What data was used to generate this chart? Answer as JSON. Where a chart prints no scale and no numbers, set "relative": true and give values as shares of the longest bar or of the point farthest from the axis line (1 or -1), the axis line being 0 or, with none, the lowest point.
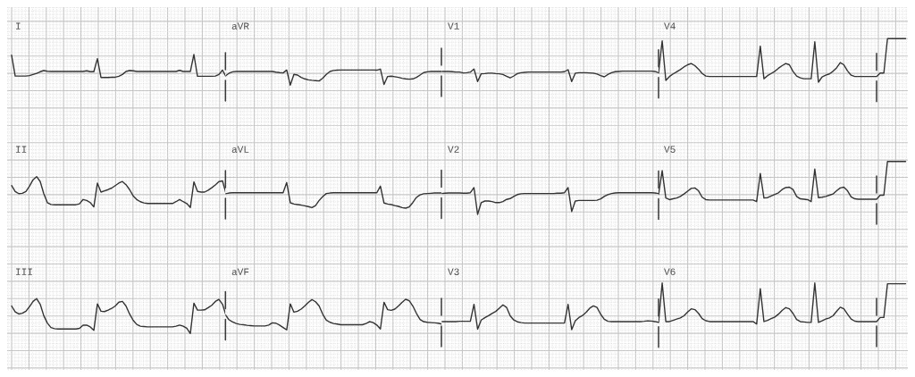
{
  "chart_data": [
    {
      "type": "line",
      "title": "I",
      "relative": true,
      "grid": true,
      "color": "#333333",
      "categories": [
        null,
        null,
        null,
        null,
        null,
        null,
        null,
        null,
        null,
        null,
        null,
        null,
        null,
        null,
        null,
        null,
        null,
        null,
        null,
        null,
        null,
        null,
        null,
        null,
        null,
        null,
        null,
        null,
        null,
        null,
        null,
        null,
        null,
        null,
        null,
        null,
        null,
        null,
        null,
        null,
        null,
        null,
        null,
        null,
        null,
        null,
        null,
        null,
        null,
        null,
        null,
        null,
        null,
        null,
        null,
        null,
        null,
        null,
        null,
        null,
        null
      ],
      "values": [
        0.97,
        0.06,
        0.06,
        0.06,
        0.06,
        0.08,
        0.13,
        0.18,
        0.25,
        0.3,
        0.27,
        0.26,
        0.26,
        0.26,
        0.26,
        0.26,
        0.26,
        0.26,
        0.26,
        0.26,
        0.26,
        0.29,
        0.25,
        0.25,
        0.82,
        0,
        0,
        0,
        0.01,
        0.01,
        0.05,
        0.13,
        0.26,
        0.3,
        0.29,
        0.26,
        0.26,
        0.26,
        0.26,
        0.26,
        0.26,
        0.26,
        0.26,
        0.26,
        0.26,
        0.26,
        0.26,
        0.31,
        0.26,
        0.26,
        0.26,
        1,
        0.05,
        0.05,
        0.05,
        0.05,
        0.05,
        0.06,
        0.13,
        0.32,
        0.03
      ]
    },
    {
      "type": "line",
      "title": "aVR",
      "relative": true,
      "grid": true,
      "color": "#333333",
      "categories": [
        null,
        null,
        null,
        null,
        null,
        null,
        null,
        null,
        null,
        null,
        null,
        null,
        null,
        null,
        null,
        null,
        null,
        null,
        null,
        null,
        null,
        null,
        null,
        null,
        null,
        null,
        null,
        null,
        null,
        null,
        null,
        null,
        null,
        null,
        null,
        null,
        null,
        null,
        null,
        null,
        null,
        null,
        null,
        null,
        null,
        null,
        null,
        null,
        null,
        null,
        null,
        null,
        null,
        null,
        null,
        null,
        null,
        null,
        null,
        null,
        null
      ],
      "values": [
        0.57,
        0.74,
        0.83,
        0.85,
        0.85,
        0.85,
        0.85,
        0.85,
        0.85,
        0.85,
        0.85,
        0.85,
        0.85,
        0.85,
        0.81,
        0.78,
        0.76,
        0.94,
        0,
        0.67,
        0.63,
        0.48,
        0.39,
        0.33,
        0.3,
        0.28,
        0.26,
        0.43,
        0.67,
        0.85,
        0.91,
        0.93,
        0.94,
        0.94,
        0.94,
        0.94,
        0.94,
        0.94,
        0.94,
        0.94,
        0.94,
        0.94,
        0.93,
        1,
        0.04,
        0.54,
        0.56,
        0.52,
        0.48,
        0.43,
        0.39,
        0.37,
        0.39,
        0.48,
        0.63,
        0.78,
        0.83,
        0.85,
        0.85,
        0.85,
        0.85
      ]
    },
    {
      "type": "line",
      "title": "V1",
      "relative": true,
      "grid": true,
      "color": "#333333",
      "categories": [
        null,
        null,
        null,
        null,
        null,
        null,
        null,
        null,
        null,
        null,
        null,
        null,
        null,
        null,
        null,
        null,
        null,
        null,
        null,
        null,
        null,
        null,
        null,
        null,
        null,
        null,
        null,
        null,
        null,
        null,
        null,
        null,
        null,
        null,
        null,
        null,
        null,
        null,
        null,
        null,
        null,
        null,
        null,
        null,
        null,
        null,
        null,
        null,
        null,
        null,
        null,
        null,
        null,
        null,
        null,
        null,
        null,
        null,
        null,
        null,
        null
      ],
      "values": [
        0.81,
        0.81,
        0.81,
        0.79,
        0.76,
        0.76,
        0.69,
        0.71,
        0.76,
        1,
        0,
        0.62,
        0.64,
        0.67,
        0.67,
        0.64,
        0.62,
        0.57,
        0.43,
        0.29,
        0.45,
        0.64,
        0.71,
        0.74,
        0.76,
        0.76,
        0.76,
        0.76,
        0.76,
        0.76,
        0.76,
        0.76,
        0.76,
        0.76,
        0.79,
        0.95,
        0,
        0.67,
        0.71,
        0.71,
        0.71,
        0.69,
        0.67,
        0.6,
        0.48,
        0.38,
        0.57,
        0.71,
        0.79,
        0.81,
        0.83,
        0.83,
        0.83,
        0.83,
        0.83,
        0.83,
        0.83,
        0.83,
        0.83,
        0.81,
        0.71
      ]
    },
    {
      "type": "line",
      "title": "V4",
      "relative": true,
      "grid": true,
      "color": "#333333",
      "categories": [
        null,
        null,
        null,
        null,
        null,
        null,
        null,
        null,
        null,
        null,
        null,
        null,
        null,
        null,
        null,
        null,
        null,
        null,
        null,
        null,
        null,
        null,
        null,
        null,
        null,
        null,
        null,
        null,
        null,
        null,
        null,
        null,
        null,
        null,
        null,
        null,
        null,
        null,
        null,
        null,
        null,
        null,
        null,
        null,
        null,
        null,
        null,
        null,
        null,
        null,
        null,
        null,
        null,
        null,
        null,
        null,
        null,
        null,
        null,
        null,
        null,
        null,
        null,
        null,
        null,
        null,
        null,
        null,
        null
      ],
      "values": [
        0.21,
        0.95,
        0.04,
        0.13,
        0.19,
        0.24,
        0.29,
        0.35,
        0.4,
        0.43,
        0.38,
        0.3,
        0.2,
        0.14,
        0.13,
        0.13,
        0.13,
        0.13,
        0.13,
        0.13,
        0.13,
        0.13,
        0.13,
        0.13,
        0.13,
        0.13,
        0.13,
        0.13,
        0.83,
        0.08,
        0.15,
        0.2,
        0.25,
        0.32,
        0.38,
        0.43,
        0.4,
        0.25,
        0.14,
        0.1,
        0.08,
        0.08,
        0.08,
        0.93,
        0,
        0.12,
        0.16,
        0.19,
        0.25,
        0.33,
        0.45,
        0.4,
        0.26,
        0.16,
        0.13,
        0.13,
        0.13,
        0.13,
        0.13,
        0.13,
        0.13,
        0.21,
        0.21,
        1,
        1,
        1,
        1,
        1,
        1
      ]
    },
    {
      "type": "line",
      "title": "II",
      "relative": true,
      "grid": true,
      "color": "#333333",
      "categories": [
        null,
        null,
        null,
        null,
        null,
        null,
        null,
        null,
        null,
        null,
        null,
        null,
        null,
        null,
        null,
        null,
        null,
        null,
        null,
        null,
        null,
        null,
        null,
        null,
        null,
        null,
        null,
        null,
        null,
        null,
        null,
        null,
        null,
        null,
        null,
        null,
        null,
        null,
        null,
        null,
        null,
        null,
        null,
        null,
        null,
        null,
        null,
        null,
        null,
        null,
        null,
        null,
        null,
        null,
        null,
        null,
        null,
        null,
        null,
        null,
        null
      ],
      "values": [
        0.71,
        0.52,
        0.45,
        0.46,
        0.52,
        0.69,
        0.9,
        1,
        0.84,
        0.45,
        0.16,
        0.1,
        0.09,
        0.09,
        0.09,
        0.09,
        0.09,
        0.09,
        0.09,
        0.12,
        0.26,
        0.23,
        0.16,
        0.02,
        0.79,
        0.5,
        0.54,
        0.58,
        0.63,
        0.71,
        0.79,
        0.84,
        0.74,
        0.58,
        0.38,
        0.26,
        0.19,
        0.15,
        0.13,
        0.13,
        0.13,
        0.13,
        0.13,
        0.13,
        0.13,
        0.13,
        0.19,
        0.26,
        0.19,
        0.13,
        0,
        0.83,
        0.52,
        0.5,
        0.5,
        0.56,
        0.64,
        0.73,
        0.84,
        0.86,
        0.45
      ]
    },
    {
      "type": "line",
      "title": "aVL",
      "relative": true,
      "grid": true,
      "color": "#333333",
      "categories": [
        null,
        null,
        null,
        null,
        null,
        null,
        null,
        null,
        null,
        null,
        null,
        null,
        null,
        null,
        null,
        null,
        null,
        null,
        null,
        null,
        null,
        null,
        null,
        null,
        null,
        null,
        null,
        null,
        null,
        null,
        null,
        null,
        null,
        null,
        null,
        null,
        null,
        null,
        null,
        null,
        null,
        null,
        null,
        null,
        null,
        null,
        null,
        null,
        null,
        null,
        null,
        null,
        null,
        null,
        null,
        null,
        null,
        null,
        null,
        null,
        null
      ],
      "values": [
        0.56,
        0.59,
        0.6,
        0.6,
        0.6,
        0.6,
        0.6,
        0.6,
        0.6,
        0.6,
        0.6,
        0.6,
        0.6,
        0.6,
        0.6,
        0.6,
        0.6,
        1,
        0.21,
        0.16,
        0.14,
        0.12,
        0.09,
        0.06,
        0.02,
        0.1,
        0.3,
        0.45,
        0.57,
        0.59,
        0.6,
        0.6,
        0.6,
        0.6,
        0.6,
        0.6,
        0.6,
        0.6,
        0.6,
        0.6,
        0.6,
        0.6,
        0.6,
        0.86,
        0.2,
        0.16,
        0.14,
        0.1,
        0.07,
        0.02,
        0,
        0.05,
        0.22,
        0.42,
        0.52,
        0.56,
        0.57,
        0.58,
        0.59,
        0.59,
        0.59
      ]
    },
    {
      "type": "line",
      "title": "V2",
      "relative": true,
      "grid": true,
      "color": "#333333",
      "categories": [
        null,
        null,
        null,
        null,
        null,
        null,
        null,
        null,
        null,
        null,
        null,
        null,
        null,
        null,
        null,
        null,
        null,
        null,
        null,
        null,
        null,
        null,
        null,
        null,
        null,
        null,
        null,
        null,
        null,
        null,
        null,
        null,
        null,
        null,
        null,
        null,
        null,
        null,
        null,
        null,
        null,
        null,
        null,
        null,
        null,
        null,
        null,
        null,
        null,
        null,
        null,
        null,
        null,
        null,
        null,
        null,
        null,
        null,
        null,
        null,
        null
      ],
      "values": [
        0.78,
        0.79,
        0.8,
        0.8,
        0.8,
        0.8,
        0.79,
        0.79,
        0.81,
        1,
        0,
        0.44,
        0.5,
        0.5,
        0.48,
        0.44,
        0.44,
        0.48,
        0.56,
        0.59,
        0.67,
        0.74,
        0.77,
        0.78,
        0.78,
        0.78,
        0.78,
        0.78,
        0.78,
        0.78,
        0.78,
        0.78,
        0.79,
        0.79,
        0.81,
        1,
        0.11,
        0.5,
        0.52,
        0.52,
        0.52,
        0.52,
        0.52,
        0.53,
        0.58,
        0.67,
        0.74,
        0.78,
        0.8,
        0.81,
        0.81,
        0.81,
        0.81,
        0.81,
        0.81,
        0.81,
        0.81,
        0.81,
        0.81,
        0.8,
        0.78
      ]
    },
    {
      "type": "line",
      "title": "V5",
      "relative": true,
      "grid": true,
      "color": "#333333",
      "categories": [
        null,
        null,
        null,
        null,
        null,
        null,
        null,
        null,
        null,
        null,
        null,
        null,
        null,
        null,
        null,
        null,
        null,
        null,
        null,
        null,
        null,
        null,
        null,
        null,
        null,
        null,
        null,
        null,
        null,
        null,
        null,
        null,
        null,
        null,
        null,
        null,
        null,
        null,
        null,
        null,
        null,
        null,
        null,
        null,
        null,
        null,
        null,
        null,
        null,
        null,
        null,
        null,
        null,
        null,
        null,
        null,
        null,
        null,
        null,
        null,
        null,
        null,
        null,
        null,
        null,
        null,
        null,
        null,
        null
      ],
      "values": [
        0.18,
        0.77,
        0.09,
        0.05,
        0.07,
        0.09,
        0.13,
        0.19,
        0.26,
        0.33,
        0.34,
        0.27,
        0.11,
        0.05,
        0.04,
        0.04,
        0.04,
        0.04,
        0.04,
        0.04,
        0.04,
        0.04,
        0.04,
        0.04,
        0.04,
        0.04,
        0.04,
        0,
        0.7,
        0.09,
        0.1,
        0.14,
        0.18,
        0.22,
        0.3,
        0.35,
        0.36,
        0.3,
        0.13,
        0.07,
        0.06,
        0.05,
        0,
        0.81,
        0.1,
        0.11,
        0.13,
        0.16,
        0.19,
        0.27,
        0.34,
        0.36,
        0.27,
        0.12,
        0.07,
        0.06,
        0.06,
        0.06,
        0.06,
        0.06,
        0.06,
        0.16,
        0.16,
        1,
        1,
        1,
        1,
        1,
        1
      ]
    },
    {
      "type": "line",
      "title": "III",
      "relative": true,
      "grid": true,
      "color": "#333333",
      "categories": [
        null,
        null,
        null,
        null,
        null,
        null,
        null,
        null,
        null,
        null,
        null,
        null,
        null,
        null,
        null,
        null,
        null,
        null,
        null,
        null,
        null,
        null,
        null,
        null,
        null,
        null,
        null,
        null,
        null,
        null,
        null,
        null,
        null,
        null,
        null,
        null,
        null,
        null,
        null,
        null,
        null,
        null,
        null,
        null,
        null,
        null,
        null,
        null,
        null,
        null,
        null,
        null,
        null,
        null,
        null,
        null,
        null,
        null,
        null,
        null,
        null
      ],
      "values": [
        0.79,
        0.62,
        0.56,
        0.58,
        0.64,
        0.77,
        0.92,
        1,
        0.84,
        0.51,
        0.3,
        0.17,
        0.14,
        0.13,
        0.13,
        0.13,
        0.13,
        0.13,
        0.13,
        0.15,
        0.24,
        0.24,
        0.19,
        0.09,
        0.85,
        0.64,
        0.63,
        0.67,
        0.72,
        0.79,
        0.9,
        0.92,
        0.79,
        0.56,
        0.38,
        0.26,
        0.21,
        0.2,
        0.19,
        0.19,
        0.19,
        0.19,
        0.19,
        0.19,
        0.19,
        0.19,
        0.21,
        0.24,
        0.21,
        0.15,
        0,
        0.87,
        0.67,
        0.67,
        0.68,
        0.74,
        0.81,
        0.92,
        0.98,
        0.84,
        0.51
      ]
    },
    {
      "type": "line",
      "title": "aVF",
      "relative": true,
      "grid": true,
      "color": "#333333",
      "categories": [
        null,
        null,
        null,
        null,
        null,
        null,
        null,
        null,
        null,
        null,
        null,
        null,
        null,
        null,
        null,
        null,
        null,
        null,
        null,
        null,
        null,
        null,
        null,
        null,
        null,
        null,
        null,
        null,
        null,
        null,
        null,
        null,
        null,
        null,
        null,
        null,
        null,
        null,
        null,
        null,
        null,
        null,
        null,
        null,
        null,
        null,
        null,
        null,
        null,
        null,
        null,
        null,
        null,
        null,
        null,
        null,
        null,
        null,
        null,
        null,
        null
      ],
      "values": [
        0.49,
        0.33,
        0.26,
        0.21,
        0.18,
        0.17,
        0.15,
        0.14,
        0.13,
        0.13,
        0.13,
        0.13,
        0.16,
        0.23,
        0.22,
        0.16,
        0.08,
        0,
        0.85,
        0.58,
        0.61,
        0.68,
        0.78,
        0.9,
        0.99,
        0.92,
        0.78,
        0.51,
        0.32,
        0.25,
        0.21,
        0.19,
        0.17,
        0.17,
        0.17,
        0.17,
        0.17,
        0.17,
        0.17,
        0.21,
        0.27,
        0.24,
        0.16,
        0.03,
        0.9,
        0.66,
        0.64,
        0.68,
        0.78,
        0.9,
        1,
        0.95,
        0.78,
        0.54,
        0.34,
        0.27,
        0.25,
        0.24,
        0.23,
        0.22,
        0.19
      ]
    },
    {
      "type": "line",
      "title": "V3",
      "relative": true,
      "grid": true,
      "color": "#333333",
      "categories": [
        null,
        null,
        null,
        null,
        null,
        null,
        null,
        null,
        null,
        null,
        null,
        null,
        null,
        null,
        null,
        null,
        null,
        null,
        null,
        null,
        null,
        null,
        null,
        null,
        null,
        null,
        null,
        null,
        null,
        null,
        null,
        null,
        null,
        null,
        null,
        null,
        null,
        null,
        null,
        null,
        null,
        null,
        null,
        null,
        null,
        null,
        null,
        null,
        null,
        null,
        null,
        null,
        null,
        null,
        null,
        null,
        null,
        null,
        null,
        null,
        null
      ],
      "values": [
        0.32,
        0.32,
        0.32,
        0.32,
        0.32,
        0.33,
        0.33,
        0.33,
        0.33,
        1,
        0.02,
        0.38,
        0.47,
        0.55,
        0.64,
        0.72,
        0.85,
        0.98,
        0.88,
        0.55,
        0.38,
        0.31,
        0.28,
        0.26,
        0.26,
        0.26,
        0.26,
        0.26,
        0.26,
        0.26,
        0.26,
        0.26,
        0.26,
        0.26,
        0.26,
        1,
        0,
        0.35,
        0.48,
        0.56,
        0.69,
        0.85,
        0.94,
        0.88,
        0.61,
        0.41,
        0.33,
        0.32,
        0.32,
        0.32,
        0.32,
        0.32,
        0.32,
        0.32,
        0.32,
        0.32,
        0.33,
        0.35,
        0.34,
        0.32,
        0.29
      ]
    },
    {
      "type": "line",
      "title": "V6",
      "relative": true,
      "grid": true,
      "color": "#333333",
      "categories": [
        null,
        null,
        null,
        null,
        null,
        null,
        null,
        null,
        null,
        null,
        null,
        null,
        null,
        null,
        null,
        null,
        null,
        null,
        null,
        null,
        null,
        null,
        null,
        null,
        null,
        null,
        null,
        null,
        null,
        null,
        null,
        null,
        null,
        null,
        null,
        null,
        null,
        null,
        null,
        null,
        null,
        null,
        null,
        null,
        null,
        null,
        null,
        null,
        null,
        null,
        null,
        null,
        null,
        null,
        null,
        null,
        null,
        null,
        null,
        null,
        null,
        null,
        null,
        null,
        null,
        null,
        null,
        null,
        null
      ],
      "values": [
        0.04,
        1,
        0.06,
        0.06,
        0.09,
        0.12,
        0.15,
        0.2,
        0.29,
        0.37,
        0.35,
        0.26,
        0.13,
        0.08,
        0.06,
        0.06,
        0.06,
        0.06,
        0.06,
        0.06,
        0.06,
        0.06,
        0.06,
        0.06,
        0.06,
        0.06,
        0.06,
        0,
        0.86,
        0.06,
        0.09,
        0.13,
        0.17,
        0.24,
        0.33,
        0.4,
        0.37,
        0.26,
        0.11,
        0.06,
        0.05,
        0.04,
        0.04,
        1,
        0.04,
        0.08,
        0.12,
        0.15,
        0.2,
        0.31,
        0.41,
        0.37,
        0.24,
        0.12,
        0.07,
        0.06,
        0.06,
        0.06,
        0.06,
        0.06,
        0.06,
        0.16,
        0.16,
        0.98,
        0.98,
        0.98,
        0.98,
        0.98,
        0.98
      ]
    }
  ]
}
